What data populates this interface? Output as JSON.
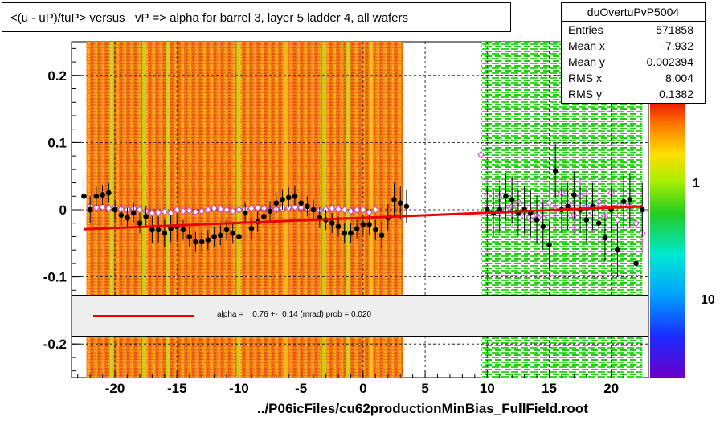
{
  "title": "<(u - uP)/tuP> versus   vP => alpha for barrel 3, layer 5 ladder 4, all wafers",
  "stats": {
    "name": "duOvertuPvP5004",
    "rows": [
      {
        "label": "Entries",
        "value": "571858"
      },
      {
        "label": "Mean x",
        "value": "-7.932"
      },
      {
        "label": "Mean y",
        "value": "-0.002394"
      },
      {
        "label": "RMS x",
        "value": "8.004"
      },
      {
        "label": "RMS y",
        "value": "0.1382"
      }
    ]
  },
  "fit_text": "alpha =    0.76 +-  0.14 (mrad) prob = 0.020",
  "footer": "../P06icFiles/cu62productionMinBias_FullField.root",
  "colors": {
    "fit_line": "#ee0000",
    "black_points": "#000000",
    "pink_points": "#cc44cc",
    "box_bg": "#eeeeee"
  },
  "chart_data": {
    "type": "scatter",
    "title": "<(u - uP)/tuP> versus   vP => alpha for barrel 3, layer 5 ladder 4, all wafers",
    "xlabel": "",
    "ylabel": "",
    "xlim": [
      -23.5,
      23.0
    ],
    "ylim": [
      -0.25,
      0.25
    ],
    "xticks": [
      -20,
      -15,
      -10,
      -5,
      0,
      5,
      10,
      15,
      20
    ],
    "xtick_labels": [
      "-20",
      "-15",
      "-10",
      "-5",
      "0",
      "5",
      "10",
      "15",
      "20"
    ],
    "yticks": [
      0.2,
      0.1,
      0,
      -0.1,
      -0.2
    ],
    "ytick_labels": [
      "0.2",
      "0.1",
      "0",
      "-0.1",
      "-0.2"
    ],
    "colorbar_labels": [
      "1",
      "10"
    ],
    "grid": true,
    "fit_line": {
      "x": [
        -22.5,
        22.5
      ],
      "y": [
        -0.029,
        0.005
      ]
    },
    "series": [
      {
        "marker": "filled-circle",
        "x": [
          -22.5,
          -22,
          -21.5,
          -21,
          -20.5,
          -20,
          -19.5,
          -19,
          -18.5,
          -18,
          -17.5,
          -17,
          -16.5,
          -16,
          -15.5,
          -15,
          -14.5,
          -14,
          -13.5,
          -13,
          -12.5,
          -12,
          -11.5,
          -11,
          -10.5,
          -10,
          -9.5,
          -9,
          -8.5,
          -8,
          -7.5,
          -7,
          -6.5,
          -6,
          -5.5,
          -5,
          -4.5,
          -4,
          -3.5,
          -3,
          -2.5,
          -2,
          -1.5,
          -1,
          -0.5,
          0,
          0.5,
          1,
          1.5,
          2,
          2.5,
          3,
          3.5,
          10,
          10.5,
          11,
          11.5,
          12,
          12.5,
          13,
          13.5,
          14,
          14.5,
          15,
          15.5,
          16,
          16.5,
          17,
          17.5,
          18,
          18.5,
          19,
          19.5,
          20,
          20.5,
          21,
          21.5,
          22,
          22.5
        ],
        "y": [
          0.02,
          0.0,
          0.02,
          0.022,
          0.025,
          0.0,
          -0.008,
          -0.012,
          -0.005,
          -0.02,
          -0.01,
          -0.03,
          -0.03,
          -0.035,
          -0.028,
          -0.025,
          -0.03,
          -0.04,
          -0.048,
          -0.048,
          -0.045,
          -0.04,
          -0.038,
          -0.03,
          -0.035,
          -0.04,
          -0.005,
          -0.028,
          -0.018,
          -0.01,
          -0.002,
          0.01,
          0.015,
          0.018,
          0.02,
          0.01,
          0.005,
          0.0,
          -0.012,
          -0.015,
          -0.02,
          -0.025,
          -0.035,
          -0.035,
          -0.028,
          -0.022,
          -0.022,
          -0.03,
          -0.038,
          -0.012,
          0.015,
          0.01,
          0.005,
          0.0,
          -0.005,
          0.0,
          0.02,
          0.015,
          -0.005,
          0.0,
          -0.005,
          -0.015,
          -0.025,
          -0.052,
          0.058,
          0.0,
          0.005,
          0.022,
          0.0,
          -0.015,
          0.005,
          -0.02,
          -0.042,
          0.0,
          -0.06,
          0.012,
          0.015,
          -0.08,
          0.0
        ],
        "errors": [
          0.03,
          0.02,
          0.015,
          0.015,
          0.015,
          0.015,
          0.015,
          0.015,
          0.015,
          0.015,
          0.015,
          0.02,
          0.02,
          0.02,
          0.02,
          0.02,
          0.015,
          0.015,
          0.015,
          0.015,
          0.015,
          0.015,
          0.015,
          0.015,
          0.015,
          0.015,
          0.015,
          0.015,
          0.015,
          0.015,
          0.015,
          0.015,
          0.015,
          0.015,
          0.015,
          0.015,
          0.015,
          0.015,
          0.015,
          0.015,
          0.015,
          0.015,
          0.015,
          0.015,
          0.015,
          0.015,
          0.015,
          0.015,
          0.02,
          0.02,
          0.025,
          0.025,
          0.025,
          0.035,
          0.035,
          0.035,
          0.035,
          0.035,
          0.035,
          0.035,
          0.035,
          0.035,
          0.035,
          0.035,
          0.04,
          0.035,
          0.035,
          0.035,
          0.035,
          0.035,
          0.035,
          0.035,
          0.035,
          0.035,
          0.04,
          0.04,
          0.04,
          0.045,
          0.04
        ]
      },
      {
        "marker": "open-diamond",
        "x": [
          -22,
          -21.5,
          -21,
          -20.5,
          -20,
          -19.5,
          -19,
          -18.5,
          -18,
          -17.5,
          -17,
          -16.5,
          -16,
          -15.5,
          -15,
          -14.5,
          -14,
          -13.5,
          -13,
          -12.5,
          -12,
          -11.5,
          -11,
          -10.5,
          -10,
          -9.5,
          -9,
          -8.5,
          -8,
          -7.5,
          -7,
          -6.5,
          -6,
          -5.5,
          -5,
          -4.5,
          -4,
          -3.5,
          -3,
          -2.5,
          -2,
          -1.5,
          -1,
          -0.5,
          0,
          0.5,
          1,
          9.5,
          10,
          10.5,
          11,
          11.5,
          12,
          12.5,
          13,
          13.5,
          14,
          14.5,
          15,
          15.5,
          16,
          16.5,
          17,
          17.5,
          18,
          18.5,
          19,
          19.5,
          20,
          20.5,
          21,
          21.5,
          22,
          22.5
        ],
        "y": [
          0.005,
          0.003,
          0.004,
          0.002,
          0.003,
          0.001,
          0.0,
          0.002,
          0.0,
          -0.002,
          -0.005,
          -0.004,
          -0.003,
          -0.005,
          0.0,
          -0.002,
          -0.001,
          -0.003,
          -0.002,
          0.0,
          0.002,
          0.001,
          0.0,
          -0.002,
          0.0,
          0.001,
          0.002,
          0.003,
          0.002,
          0.0,
          0.001,
          0.002,
          0.003,
          0.004,
          0.003,
          0.002,
          0.0,
          -0.001,
          0.0,
          0.002,
          0.001,
          0.0,
          -0.002,
          0.0,
          0.0,
          -0.004,
          0.0,
          0.082,
          0.02,
          -0.005,
          0.018,
          0.0,
          0.005,
          0.012,
          -0.01,
          -0.015,
          -0.008,
          -0.012,
          0.01,
          0.0,
          0.025,
          0.01,
          -0.008,
          0.02,
          0.005,
          -0.005,
          0.012,
          -0.01,
          0.025,
          -0.015,
          0.008,
          0.005,
          -0.02,
          -0.035
        ],
        "errors": [
          0,
          0,
          0,
          0,
          0,
          0,
          0,
          0,
          0,
          0,
          0,
          0,
          0,
          0,
          0,
          0,
          0,
          0,
          0,
          0,
          0,
          0,
          0,
          0,
          0,
          0,
          0,
          0,
          0,
          0,
          0,
          0,
          0,
          0,
          0,
          0,
          0,
          0,
          0,
          0,
          0,
          0,
          0,
          0,
          0,
          0,
          0,
          0.03,
          0.03,
          0.03,
          0.03,
          0.03,
          0.03,
          0.03,
          0.03,
          0.03,
          0.03,
          0.03,
          0.03,
          0.03,
          0.03,
          0.03,
          0.03,
          0.03,
          0.03,
          0.03,
          0.03,
          0.03,
          0.03,
          0.03,
          0.03,
          0.03,
          0.03,
          0.03
        ]
      }
    ]
  }
}
